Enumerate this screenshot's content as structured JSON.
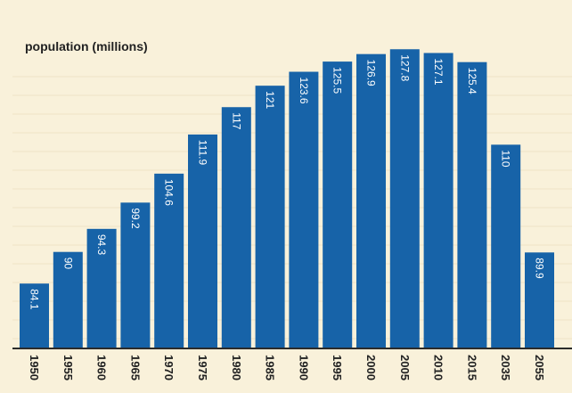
{
  "colors": {
    "background": "#f9f1da",
    "bar": "#1763a8",
    "gridline": "#efe4c5",
    "axis": "#2b2b2b",
    "text": "#222222",
    "bar_label": "#ffffff"
  },
  "chart_data": {
    "type": "bar",
    "title": "population (millions)",
    "xlabel": "",
    "ylabel": "",
    "categories": [
      "1950",
      "1955",
      "1960",
      "1965",
      "1970",
      "1975",
      "1980",
      "1985",
      "1990",
      "1995",
      "2000",
      "2005",
      "2010",
      "2015",
      "2035",
      "2055"
    ],
    "series": [
      {
        "values": [
          84.1,
          90,
          94.3,
          99.2,
          104.6,
          111.9,
          117,
          121,
          123.6,
          125.5,
          126.9,
          127.8,
          127.1,
          125.4,
          110,
          89.9
        ]
      }
    ],
    "value_labels": [
      "84.1",
      "90",
      "94.3",
      "99.2",
      "104.6",
      "111.9",
      "117",
      "121",
      "123.6",
      "125.5",
      "126.9",
      "127.8",
      "127.1",
      "125.4",
      "110",
      "89.9"
    ],
    "ylim": [
      72,
      131
    ],
    "grid": true,
    "legend": "none"
  }
}
